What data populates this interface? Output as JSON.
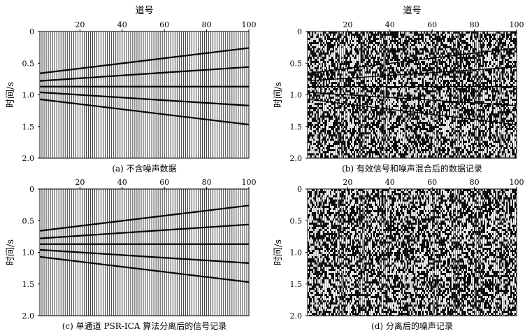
{
  "chart_data": [
    {
      "type": "seismic-wiggle",
      "caption": "(a) 不含噪声数据",
      "xlabel": "道号",
      "ylabel": "时间/s",
      "x_range": [
        1,
        100
      ],
      "xticks": [
        20,
        40,
        60,
        80,
        100
      ],
      "y_range": [
        0,
        2.0
      ],
      "yticks": [
        "0",
        "0.5",
        "1.0",
        "1.5",
        "2.0"
      ],
      "y_inverted": true,
      "traces": 100,
      "noise": false,
      "events": [
        {
          "name": "event-1",
          "x": [
            1,
            100
          ],
          "t": [
            0.66,
            0.26
          ]
        },
        {
          "name": "event-2",
          "x": [
            1,
            100
          ],
          "t": [
            0.78,
            0.56
          ]
        },
        {
          "name": "event-3",
          "x": [
            1,
            100
          ],
          "t": [
            0.87,
            0.87
          ]
        },
        {
          "name": "event-4",
          "x": [
            1,
            100
          ],
          "t": [
            0.96,
            1.17
          ]
        },
        {
          "name": "event-5",
          "x": [
            1,
            100
          ],
          "t": [
            1.07,
            1.47
          ]
        }
      ]
    },
    {
      "type": "seismic-wiggle",
      "caption": "(b) 有效信号和噪声混合后的数据记录",
      "xlabel": "道号",
      "ylabel": "时间/s",
      "x_range": [
        1,
        100
      ],
      "xticks": [
        20,
        40,
        60,
        80,
        100
      ],
      "y_range": [
        0,
        2.0
      ],
      "yticks": [
        "0",
        "0.5",
        "1.0",
        "1.5",
        "2.0"
      ],
      "y_inverted": true,
      "traces": 100,
      "noise": true,
      "events": [
        {
          "name": "event-1",
          "x": [
            1,
            100
          ],
          "t": [
            0.66,
            0.26
          ]
        },
        {
          "name": "event-2",
          "x": [
            1,
            100
          ],
          "t": [
            0.78,
            0.56
          ]
        },
        {
          "name": "event-3",
          "x": [
            1,
            100
          ],
          "t": [
            0.87,
            0.87
          ]
        },
        {
          "name": "event-4",
          "x": [
            1,
            100
          ],
          "t": [
            0.96,
            1.17
          ]
        },
        {
          "name": "event-5",
          "x": [
            1,
            100
          ],
          "t": [
            1.07,
            1.47
          ]
        }
      ]
    },
    {
      "type": "seismic-wiggle",
      "caption": "(c) 单通道 PSR-ICA 算法分离后的信号记录",
      "xlabel": "",
      "ylabel": "时间/s",
      "x_range": [
        1,
        100
      ],
      "xticks": [
        20,
        40,
        60,
        80,
        100
      ],
      "y_range": [
        0,
        2.0
      ],
      "yticks": [
        "0",
        "0.5",
        "1.0",
        "1.5",
        "2.0"
      ],
      "y_inverted": true,
      "traces": 100,
      "noise": false,
      "events": [
        {
          "name": "event-1",
          "x": [
            1,
            100
          ],
          "t": [
            0.66,
            0.26
          ]
        },
        {
          "name": "event-2",
          "x": [
            1,
            100
          ],
          "t": [
            0.78,
            0.56
          ]
        },
        {
          "name": "event-3",
          "x": [
            1,
            100
          ],
          "t": [
            0.87,
            0.87
          ]
        },
        {
          "name": "event-4",
          "x": [
            1,
            100
          ],
          "t": [
            0.96,
            1.17
          ]
        },
        {
          "name": "event-5",
          "x": [
            1,
            100
          ],
          "t": [
            1.07,
            1.47
          ]
        }
      ]
    },
    {
      "type": "seismic-wiggle",
      "caption": "(d) 分离后的噪声记录",
      "xlabel": "",
      "ylabel": "时间/s",
      "x_range": [
        1,
        100
      ],
      "xticks": [
        20,
        40,
        60,
        80,
        100
      ],
      "y_range": [
        0,
        2.0
      ],
      "yticks": [
        "0",
        "0.5",
        "1.0",
        "1.5",
        "2.0"
      ],
      "y_inverted": true,
      "traces": 100,
      "noise": true,
      "events": []
    }
  ]
}
